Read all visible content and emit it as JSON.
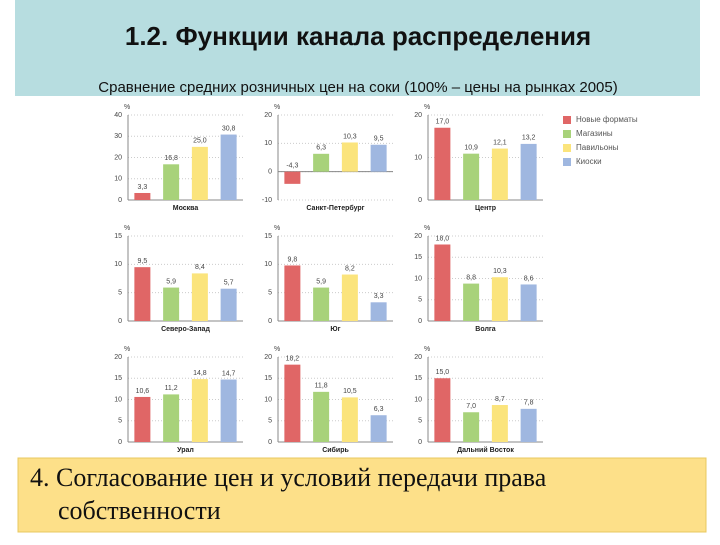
{
  "slide": {
    "title": "1.2. Функции канала распределения",
    "subtitle": "Сравнение средних розничных цен на соки (100% – цены на рынках 2005)",
    "footer_line1": "4. Согласование цен и условий передачи права",
    "footer_line2": "собственности"
  },
  "legend": {
    "names": [
      "Новые форматы",
      "Магазины",
      "Павильоны",
      "Киоски"
    ],
    "colors": [
      "#e06666",
      "#a8d27a",
      "#fbe47c",
      "#9fb7e0"
    ]
  },
  "chart_data": [
    {
      "type": "bar",
      "title": "Москва",
      "y_label": "%",
      "values": [
        3.3,
        16.8,
        25.0,
        30.8
      ],
      "value_labels": [
        "3,3",
        "16,8",
        "25,0",
        "30,8"
      ],
      "ylim": [
        0,
        40
      ],
      "yticks": [
        0,
        10,
        20,
        30,
        40
      ],
      "grid": true
    },
    {
      "type": "bar",
      "title": "Санкт-Петербург",
      "y_label": "%",
      "values": [
        -4.3,
        6.3,
        10.3,
        9.5
      ],
      "value_labels": [
        "-4,3",
        "6,3",
        "10,3",
        "9,5"
      ],
      "ylim": [
        -10,
        20
      ],
      "yticks": [
        -10,
        0,
        10,
        20
      ],
      "grid": true
    },
    {
      "type": "bar",
      "title": "Центр",
      "y_label": "%",
      "values": [
        17.0,
        10.9,
        12.1,
        13.2
      ],
      "value_labels": [
        "17,0",
        "10,9",
        "12,1",
        "13,2"
      ],
      "ylim": [
        0,
        20
      ],
      "yticks": [
        0,
        10,
        20
      ],
      "grid": true
    },
    {
      "type": "bar",
      "title": "Северо-Запад",
      "y_label": "%",
      "values": [
        9.5,
        5.9,
        8.4,
        5.7
      ],
      "value_labels": [
        "9,5",
        "5,9",
        "8,4",
        "5,7"
      ],
      "ylim": [
        0,
        15
      ],
      "yticks": [
        0,
        5,
        10,
        15
      ],
      "grid": true
    },
    {
      "type": "bar",
      "title": "Юг",
      "y_label": "%",
      "values": [
        9.8,
        5.9,
        8.2,
        3.3
      ],
      "value_labels": [
        "9,8",
        "5,9",
        "8,2",
        "3,3"
      ],
      "ylim": [
        0,
        15
      ],
      "yticks": [
        0,
        5,
        10,
        15
      ],
      "grid": true
    },
    {
      "type": "bar",
      "title": "Волга",
      "y_label": "%",
      "values": [
        18.0,
        8.8,
        10.3,
        8.6
      ],
      "value_labels": [
        "18,0",
        "8,8",
        "10,3",
        "8,6"
      ],
      "ylim": [
        0,
        20
      ],
      "yticks": [
        0,
        5,
        10,
        15,
        20
      ],
      "grid": true
    },
    {
      "type": "bar",
      "title": "Урал",
      "y_label": "%",
      "values": [
        10.6,
        11.2,
        14.8,
        14.7
      ],
      "value_labels": [
        "10,6",
        "11,2",
        "14,8",
        "14,7"
      ],
      "ylim": [
        0,
        20
      ],
      "yticks": [
        0,
        5,
        10,
        15,
        20
      ],
      "grid": true
    },
    {
      "type": "bar",
      "title": "Сибирь",
      "y_label": "%",
      "values": [
        18.2,
        11.8,
        10.5,
        6.3
      ],
      "value_labels": [
        "18,2",
        "11,8",
        "10,5",
        "6,3"
      ],
      "ylim": [
        0,
        20
      ],
      "yticks": [
        0,
        5,
        10,
        15,
        20
      ],
      "grid": true
    },
    {
      "type": "bar",
      "title": "Дальний Восток",
      "y_label": "%",
      "values": [
        15.0,
        7.0,
        8.7,
        7.8
      ],
      "value_labels": [
        "15,0",
        "7,0",
        "8,7",
        "7,8"
      ],
      "ylim": [
        0,
        20
      ],
      "yticks": [
        0,
        5,
        10,
        15,
        20
      ],
      "grid": true
    }
  ]
}
